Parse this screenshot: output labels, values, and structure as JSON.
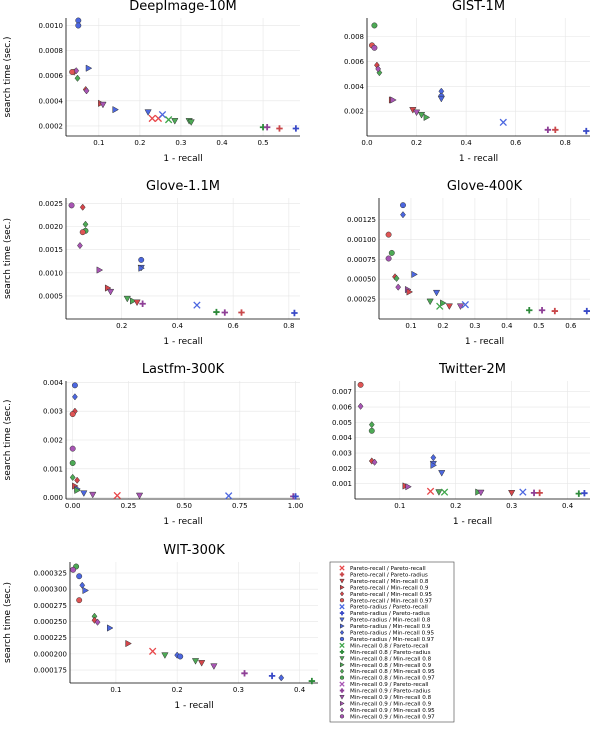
{
  "figure": {
    "legend": [
      {
        "label": "Pareto-recall / Pareto-recall",
        "color": "#e8474a",
        "marker": "x"
      },
      {
        "label": "Pareto-recall / Pareto-radius",
        "color": "#c9474a",
        "marker": "plus"
      },
      {
        "label": "Pareto-recall / Min-recall 0.8",
        "color": "#d6454a",
        "marker": "tri"
      },
      {
        "label": "Pareto-recall / Min-recall 0.9",
        "color": "#d6454a",
        "marker": "tri-right"
      },
      {
        "label": "Pareto-recall / Min-recall 0.95",
        "color": "#d6454a",
        "marker": "diamond"
      },
      {
        "label": "Pareto-recall / Min-recall 0.97",
        "color": "#e05555",
        "marker": "circle"
      },
      {
        "label": "Pareto-radius / Pareto-recall",
        "color": "#4c67e0",
        "marker": "x"
      },
      {
        "label": "Pareto-radius / Pareto-radius",
        "color": "#3949c7",
        "marker": "plus"
      },
      {
        "label": "Pareto-radius / Min-recall 0.8",
        "color": "#4c67e0",
        "marker": "tri"
      },
      {
        "label": "Pareto-radius / Min-recall 0.9",
        "color": "#4c67e0",
        "marker": "tri-right"
      },
      {
        "label": "Pareto-radius / Min-recall 0.95",
        "color": "#4c67e0",
        "marker": "diamond"
      },
      {
        "label": "Pareto-radius / Min-recall 0.97",
        "color": "#4c67e0",
        "marker": "circle"
      },
      {
        "label": "Min-recall 0.8 / Pareto-recall",
        "color": "#3fa64a",
        "marker": "x"
      },
      {
        "label": "Min-recall 0.8 / Pareto-radius",
        "color": "#2d8a3a",
        "marker": "plus"
      },
      {
        "label": "Min-recall 0.8 / Min-recall 0.8",
        "color": "#4daa55",
        "marker": "tri"
      },
      {
        "label": "Min-recall 0.8 / Min-recall 0.9",
        "color": "#4daa55",
        "marker": "tri-right"
      },
      {
        "label": "Min-recall 0.8 / Min-recall 0.95",
        "color": "#4daa55",
        "marker": "diamond"
      },
      {
        "label": "Min-recall 0.8 / Min-recall 0.97",
        "color": "#4daa55",
        "marker": "circle"
      },
      {
        "label": "Min-recall 0.9 / Pareto-recall",
        "color": "#a855b4",
        "marker": "x"
      },
      {
        "label": "Min-recall 0.9 / Pareto-radius",
        "color": "#8e3f96",
        "marker": "plus"
      },
      {
        "label": "Min-recall 0.9 / Min-recall 0.8",
        "color": "#a855b4",
        "marker": "tri"
      },
      {
        "label": "Min-recall 0.9 / Min-recall 0.9",
        "color": "#a855b4",
        "marker": "tri-right"
      },
      {
        "label": "Min-recall 0.9 / Min-recall 0.95",
        "color": "#a855b4",
        "marker": "diamond"
      },
      {
        "label": "Min-recall 0.9 / Min-recall 0.97",
        "color": "#a855b4",
        "marker": "circle"
      }
    ]
  },
  "chart_data": [
    {
      "type": "scatter",
      "title": "DeepImage-10M",
      "xlabel": "1 - recall",
      "ylabel": "search time (sec.)",
      "xlim": [
        0.02,
        0.59
      ],
      "ylim": [
        0.00012,
        0.00106
      ],
      "xticks": [
        0.1,
        0.2,
        0.3,
        0.4,
        0.5
      ],
      "xticklabels": [
        "0.1",
        "0.2",
        "0.3",
        "0.4",
        "0.5"
      ],
      "yticks": [
        0.0002,
        0.0004,
        0.0006,
        0.0008,
        0.001
      ],
      "yticklabels": [
        "0.0002",
        "0.0004",
        "0.0006",
        "0.0008",
        "0.0010"
      ],
      "points": [
        [
          0.05,
          0.00104,
          11
        ],
        [
          0.05,
          0.001,
          11
        ],
        [
          0.075,
          0.00066,
          9
        ],
        [
          0.04,
          0.00063,
          4
        ],
        [
          0.045,
          0.00064,
          22
        ],
        [
          0.035,
          0.00063,
          5
        ],
        [
          0.048,
          0.00058,
          16
        ],
        [
          0.068,
          0.00049,
          4
        ],
        [
          0.07,
          0.00048,
          22
        ],
        [
          0.105,
          0.00038,
          3
        ],
        [
          0.11,
          0.00037,
          20
        ],
        [
          0.14,
          0.00033,
          9
        ],
        [
          0.22,
          0.00031,
          8
        ],
        [
          0.23,
          0.00026,
          0
        ],
        [
          0.245,
          0.00026,
          0
        ],
        [
          0.255,
          0.00029,
          6
        ],
        [
          0.27,
          0.00025,
          12
        ],
        [
          0.285,
          0.00024,
          14
        ],
        [
          0.32,
          0.00024,
          14
        ],
        [
          0.325,
          0.00023,
          14
        ],
        [
          0.5,
          0.00019,
          13
        ],
        [
          0.51,
          0.00019,
          19
        ],
        [
          0.54,
          0.00018,
          1
        ],
        [
          0.58,
          0.00018,
          7
        ]
      ]
    },
    {
      "type": "scatter",
      "title": "GIST-1M",
      "xlabel": "1 - recall",
      "ylabel": "",
      "xlim": [
        0.0,
        0.9
      ],
      "ylim": [
        0.0,
        0.0095
      ],
      "xticks": [
        0.0,
        0.2,
        0.4,
        0.6,
        0.8
      ],
      "xticklabels": [
        "0.0",
        "0.2",
        "0.4",
        "0.6",
        "0.8"
      ],
      "yticks": [
        0.002,
        0.004,
        0.006,
        0.008
      ],
      "yticklabels": [
        "0.002",
        "0.004",
        "0.006",
        "0.008"
      ],
      "points": [
        [
          0.03,
          0.0089,
          17
        ],
        [
          0.02,
          0.0073,
          5
        ],
        [
          0.03,
          0.0071,
          23
        ],
        [
          0.04,
          0.0057,
          4
        ],
        [
          0.05,
          0.0051,
          16
        ],
        [
          0.045,
          0.0054,
          22
        ],
        [
          0.1,
          0.0029,
          3
        ],
        [
          0.105,
          0.0029,
          21
        ],
        [
          0.185,
          0.0021,
          2
        ],
        [
          0.2,
          0.0019,
          20
        ],
        [
          0.22,
          0.0017,
          14
        ],
        [
          0.24,
          0.0015,
          15
        ],
        [
          0.3,
          0.0036,
          10
        ],
        [
          0.3,
          0.0032,
          11
        ],
        [
          0.3,
          0.003,
          8
        ],
        [
          0.55,
          0.0011,
          6
        ],
        [
          0.73,
          0.0005,
          19
        ],
        [
          0.76,
          0.0005,
          1
        ],
        [
          0.885,
          0.0004,
          7
        ]
      ]
    },
    {
      "type": "scatter",
      "title": "Glove-1.1M",
      "xlabel": "1 - recall",
      "ylabel": "search time (sec.)",
      "xlim": [
        0.0,
        0.84
      ],
      "ylim": [
        0.0,
        0.00262
      ],
      "xticks": [
        0.2,
        0.4,
        0.6,
        0.8
      ],
      "xticklabels": [
        "0.2",
        "0.4",
        "0.6",
        "0.8"
      ],
      "yticks": [
        0.0005,
        0.001,
        0.0015,
        0.002,
        0.0025
      ],
      "yticklabels": [
        "0.0005",
        "0.0010",
        "0.0015",
        "0.0020",
        "0.0025"
      ],
      "points": [
        [
          0.02,
          0.00246,
          23
        ],
        [
          0.06,
          0.00242,
          4
        ],
        [
          0.07,
          0.00205,
          16
        ],
        [
          0.07,
          0.00191,
          17
        ],
        [
          0.06,
          0.00188,
          5
        ],
        [
          0.05,
          0.00159,
          22
        ],
        [
          0.12,
          0.00106,
          21
        ],
        [
          0.15,
          0.00067,
          3
        ],
        [
          0.16,
          0.00059,
          20
        ],
        [
          0.27,
          0.00128,
          11
        ],
        [
          0.27,
          0.00111,
          8
        ],
        [
          0.27,
          0.0011,
          9
        ],
        [
          0.22,
          0.00044,
          14
        ],
        [
          0.24,
          0.00039,
          15
        ],
        [
          0.255,
          0.00036,
          2
        ],
        [
          0.275,
          0.00033,
          19
        ],
        [
          0.47,
          0.0003,
          6
        ],
        [
          0.54,
          0.00015,
          13
        ],
        [
          0.57,
          0.00014,
          19
        ],
        [
          0.63,
          0.00014,
          1
        ],
        [
          0.82,
          0.00013,
          7
        ]
      ]
    },
    {
      "type": "scatter",
      "title": "Glove-400K",
      "xlabel": "1 - recall",
      "ylabel": "",
      "xlim": [
        0.0,
        0.66
      ],
      "ylim": [
        0.0,
        0.00152
      ],
      "xticks": [
        0.1,
        0.2,
        0.3,
        0.4,
        0.5,
        0.6
      ],
      "xticklabels": [
        "0.1",
        "0.2",
        "0.3",
        "0.4",
        "0.5",
        "0.6"
      ],
      "yticks": [
        0.00025,
        0.0005,
        0.00075,
        0.001,
        0.00125
      ],
      "yticklabels": [
        "0.00025",
        "0.00050",
        "0.00075",
        "0.00100",
        "0.00125"
      ],
      "points": [
        [
          0.075,
          0.00143,
          11
        ],
        [
          0.075,
          0.00131,
          10
        ],
        [
          0.03,
          0.00106,
          5
        ],
        [
          0.04,
          0.00083,
          17
        ],
        [
          0.03,
          0.00076,
          23
        ],
        [
          0.05,
          0.00053,
          4
        ],
        [
          0.055,
          0.00051,
          16
        ],
        [
          0.11,
          0.00056,
          9
        ],
        [
          0.06,
          0.0004,
          22
        ],
        [
          0.09,
          0.00037,
          21
        ],
        [
          0.095,
          0.00034,
          3
        ],
        [
          0.18,
          0.00033,
          8
        ],
        [
          0.16,
          0.00022,
          14
        ],
        [
          0.2,
          0.0002,
          15
        ],
        [
          0.19,
          0.00016,
          12
        ],
        [
          0.22,
          0.00016,
          2
        ],
        [
          0.255,
          0.00016,
          20
        ],
        [
          0.27,
          0.00018,
          6
        ],
        [
          0.47,
          0.00011,
          13
        ],
        [
          0.51,
          0.00011,
          19
        ],
        [
          0.55,
          0.0001,
          1
        ],
        [
          0.65,
          0.0001,
          7
        ]
      ]
    },
    {
      "type": "scatter",
      "title": "Lastfm-300K",
      "xlabel": "1 - recall",
      "ylabel": "search time (sec.)",
      "xlim": [
        -0.03,
        1.02
      ],
      "ylim": [
        -5e-05,
        0.00405
      ],
      "xticks": [
        0.0,
        0.25,
        0.5,
        0.75,
        1.0
      ],
      "xticklabels": [
        "0.00",
        "0.25",
        "0.50",
        "0.75",
        "1.00"
      ],
      "yticks": [
        0.0,
        0.001,
        0.002,
        0.003,
        0.004
      ],
      "yticklabels": [
        "0.000",
        "0.001",
        "0.002",
        "0.003",
        "0.004"
      ],
      "points": [
        [
          0.01,
          0.0039,
          11
        ],
        [
          0.01,
          0.0035,
          10
        ],
        [
          0.01,
          0.003,
          4
        ],
        [
          0.0,
          0.0029,
          5
        ],
        [
          0.0,
          0.0017,
          23
        ],
        [
          0.0,
          0.0012,
          17
        ],
        [
          0.0,
          0.0007,
          16
        ],
        [
          0.02,
          0.0006,
          4
        ],
        [
          0.01,
          0.0004,
          3
        ],
        [
          0.02,
          0.0003,
          9
        ],
        [
          0.02,
          0.00025,
          15
        ],
        [
          0.05,
          0.00015,
          8
        ],
        [
          0.09,
          0.0001,
          20
        ],
        [
          0.2,
          7e-05,
          0
        ],
        [
          0.3,
          7e-05,
          20
        ],
        [
          0.7,
          6e-05,
          6
        ],
        [
          0.99,
          4e-05,
          19
        ],
        [
          1.0,
          4e-05,
          7
        ]
      ]
    },
    {
      "type": "scatter",
      "title": "Twitter-2M",
      "xlabel": "1 - recall",
      "ylabel": "",
      "xlim": [
        0.02,
        0.44
      ],
      "ylim": [
        0.0,
        0.0077
      ],
      "xticks": [
        0.1,
        0.2,
        0.3,
        0.4
      ],
      "xticklabels": [
        "0.1",
        "0.2",
        "0.3",
        "0.4"
      ],
      "yticks": [
        0.001,
        0.002,
        0.003,
        0.004,
        0.005,
        0.006,
        0.007
      ],
      "yticklabels": [
        "0.001",
        "0.002",
        "0.003",
        "0.004",
        "0.005",
        "0.006",
        "0.007"
      ],
      "points": [
        [
          0.03,
          0.00745,
          5
        ],
        [
          0.03,
          0.00605,
          22
        ],
        [
          0.05,
          0.00485,
          16
        ],
        [
          0.05,
          0.00445,
          17
        ],
        [
          0.05,
          0.00248,
          4
        ],
        [
          0.055,
          0.0024,
          22
        ],
        [
          0.11,
          0.00085,
          3
        ],
        [
          0.115,
          0.0008,
          21
        ],
        [
          0.16,
          0.0027,
          10
        ],
        [
          0.16,
          0.0023,
          8
        ],
        [
          0.16,
          0.0022,
          9
        ],
        [
          0.175,
          0.0017,
          8
        ],
        [
          0.155,
          0.0005,
          0
        ],
        [
          0.17,
          0.00045,
          14
        ],
        [
          0.18,
          0.00045,
          12
        ],
        [
          0.24,
          0.00045,
          15
        ],
        [
          0.245,
          0.00042,
          20
        ],
        [
          0.3,
          0.0004,
          2
        ],
        [
          0.32,
          0.00045,
          6
        ],
        [
          0.34,
          0.0004,
          19
        ],
        [
          0.35,
          0.0004,
          1
        ],
        [
          0.42,
          0.00035,
          13
        ],
        [
          0.43,
          0.00038,
          7
        ]
      ]
    },
    {
      "type": "scatter",
      "title": "WIT-300K",
      "xlabel": "1 - recall",
      "ylabel": "search time (sec.)",
      "xlim": [
        0.025,
        0.43
      ],
      "ylim": [
        0.000155,
        0.000342
      ],
      "xticks": [
        0.1,
        0.2,
        0.3,
        0.4
      ],
      "xticklabels": [
        "0.1",
        "0.2",
        "0.3",
        "0.4"
      ],
      "yticks": [
        0.000175,
        0.0002,
        0.000225,
        0.00025,
        0.000275,
        0.0003,
        0.000325
      ],
      "yticklabels": [
        "0.000175",
        "0.000200",
        "0.000225",
        "0.000250",
        "0.000275",
        "0.000300",
        "0.000325"
      ],
      "points": [
        [
          0.035,
          0.000335,
          17
        ],
        [
          0.03,
          0.00033,
          23
        ],
        [
          0.04,
          0.00032,
          11
        ],
        [
          0.045,
          0.000306,
          10
        ],
        [
          0.05,
          0.000298,
          9
        ],
        [
          0.04,
          0.000283,
          5
        ],
        [
          0.065,
          0.000258,
          16
        ],
        [
          0.065,
          0.000252,
          4
        ],
        [
          0.07,
          0.000249,
          22
        ],
        [
          0.09,
          0.00024,
          9
        ],
        [
          0.12,
          0.000216,
          3
        ],
        [
          0.16,
          0.000204,
          0
        ],
        [
          0.18,
          0.000198,
          14
        ],
        [
          0.2,
          0.000198,
          10
        ],
        [
          0.205,
          0.000196,
          11
        ],
        [
          0.23,
          0.000189,
          14
        ],
        [
          0.24,
          0.000186,
          2
        ],
        [
          0.26,
          0.000181,
          20
        ],
        [
          0.31,
          0.00017,
          19
        ],
        [
          0.355,
          0.000166,
          7
        ],
        [
          0.37,
          0.000163,
          10
        ],
        [
          0.42,
          0.000158,
          13
        ]
      ]
    }
  ]
}
